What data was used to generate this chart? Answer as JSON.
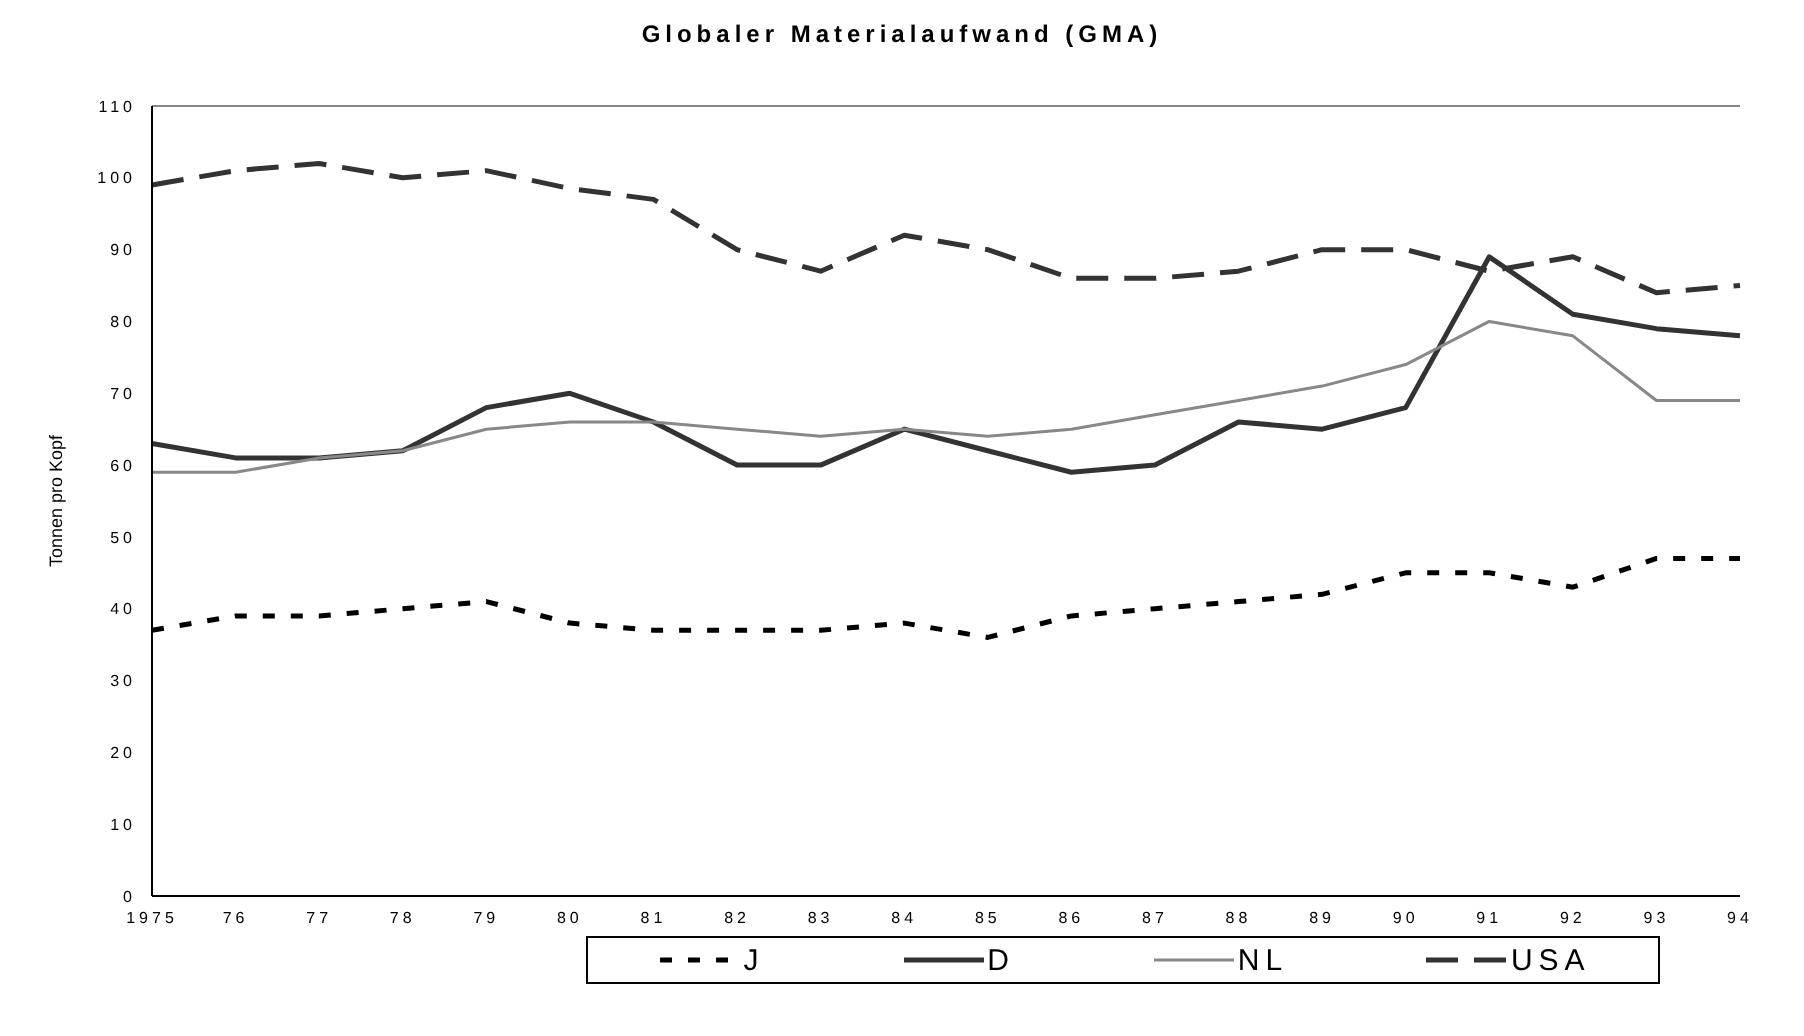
{
  "chart_data": {
    "type": "line",
    "title": "Globaler Materialaufwand (GMA)",
    "ylabel": "Tonnen pro Kopf",
    "categories": [
      "1975",
      "76",
      "77",
      "78",
      "79",
      "80",
      "81",
      "82",
      "83",
      "84",
      "85",
      "86",
      "87",
      "88",
      "89",
      "90",
      "91",
      "92",
      "93",
      "94"
    ],
    "ylim": [
      0,
      110
    ],
    "yticks": [
      0,
      10,
      20,
      30,
      40,
      50,
      60,
      70,
      80,
      90,
      100,
      110
    ],
    "grid": false,
    "legend": "bottom",
    "marker": "none",
    "series": [
      {
        "name": "J",
        "color": "#000000",
        "line_style": "dotted",
        "values": [
          37,
          39,
          39,
          40,
          41,
          38,
          37,
          37,
          37,
          38,
          36,
          39,
          40,
          41,
          42,
          45,
          45,
          43,
          47,
          47
        ]
      },
      {
        "name": "D",
        "color": "#333333",
        "line_style": "solid",
        "values": [
          63,
          61,
          61,
          62,
          68,
          70,
          66,
          60,
          60,
          65,
          62,
          59,
          60,
          66,
          65,
          68,
          89,
          81,
          79,
          78
        ]
      },
      {
        "name": "NL",
        "color": "#888888",
        "line_style": "solid",
        "values": [
          59,
          59,
          61,
          62,
          65,
          66,
          66,
          65,
          64,
          65,
          64,
          65,
          67,
          69,
          71,
          74,
          80,
          78,
          69,
          69
        ]
      },
      {
        "name": "USA",
        "color": "#333333",
        "line_style": "dashed",
        "values": [
          99,
          101,
          102,
          100,
          101,
          98.5,
          97,
          90,
          87,
          92,
          90,
          86,
          86,
          87,
          90,
          90,
          87,
          89,
          84,
          85
        ]
      }
    ]
  }
}
